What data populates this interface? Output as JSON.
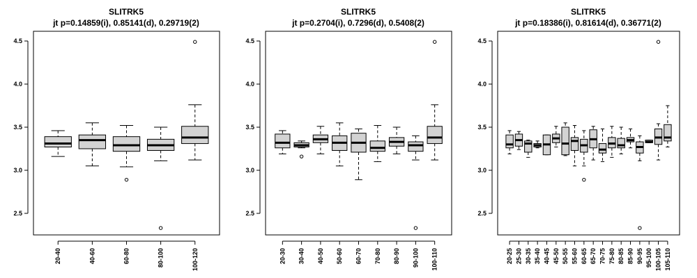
{
  "chart_data": [
    {
      "type": "boxplot",
      "title": "SLITRK5",
      "subtitle": "jt p=0.14859(i), 0.85141(d), 0.29719(2)",
      "xlabel": "",
      "ylabel": "",
      "ylim": [
        2.3,
        4.6
      ],
      "yticks": [
        "2.5",
        "3.0",
        "3.5",
        "4.0",
        "4.5"
      ],
      "categories": [
        "20-40",
        "40-60",
        "60-80",
        "80-100",
        "100-120"
      ],
      "boxes": [
        {
          "low": 3.16,
          "q1": 3.27,
          "median": 3.31,
          "q3": 3.39,
          "high": 3.46,
          "outliers": []
        },
        {
          "low": 3.05,
          "q1": 3.25,
          "median": 3.35,
          "q3": 3.41,
          "high": 3.55,
          "outliers": []
        },
        {
          "low": 3.04,
          "q1": 3.22,
          "median": 3.29,
          "q3": 3.39,
          "high": 3.52,
          "outliers": [
            2.89
          ]
        },
        {
          "low": 3.11,
          "q1": 3.23,
          "median": 3.29,
          "q3": 3.36,
          "high": 3.5,
          "outliers": [
            2.33
          ]
        },
        {
          "low": 3.12,
          "q1": 3.31,
          "median": 3.38,
          "q3": 3.51,
          "high": 3.76,
          "outliers": [
            4.49
          ]
        }
      ]
    },
    {
      "type": "boxplot",
      "title": "SLITRK5",
      "subtitle": "jt p=0.2704(i), 0.7296(d), 0.5408(2)",
      "xlabel": "",
      "ylabel": "",
      "ylim": [
        2.3,
        4.6
      ],
      "yticks": [
        "2.5",
        "3.0",
        "3.5",
        "4.0",
        "4.5"
      ],
      "categories": [
        "20-30",
        "30-40",
        "40-50",
        "50-60",
        "60-70",
        "70-80",
        "80-90",
        "90-100",
        "100-110"
      ],
      "boxes": [
        {
          "low": 3.19,
          "q1": 3.26,
          "median": 3.32,
          "q3": 3.42,
          "high": 3.46,
          "outliers": []
        },
        {
          "low": 3.26,
          "q1": 3.27,
          "median": 3.29,
          "q3": 3.32,
          "high": 3.34,
          "outliers": [
            3.16
          ]
        },
        {
          "low": 3.19,
          "q1": 3.32,
          "median": 3.36,
          "q3": 3.41,
          "high": 3.51,
          "outliers": []
        },
        {
          "low": 3.05,
          "q1": 3.23,
          "median": 3.32,
          "q3": 3.4,
          "high": 3.55,
          "outliers": []
        },
        {
          "low": 2.89,
          "q1": 3.21,
          "median": 3.32,
          "q3": 3.43,
          "high": 3.48,
          "outliers": []
        },
        {
          "low": 3.1,
          "q1": 3.22,
          "median": 3.26,
          "q3": 3.34,
          "high": 3.52,
          "outliers": []
        },
        {
          "low": 3.19,
          "q1": 3.28,
          "median": 3.33,
          "q3": 3.38,
          "high": 3.5,
          "outliers": []
        },
        {
          "low": 3.12,
          "q1": 3.22,
          "median": 3.29,
          "q3": 3.33,
          "high": 3.4,
          "outliers": [
            2.33
          ]
        },
        {
          "low": 3.12,
          "q1": 3.31,
          "median": 3.38,
          "q3": 3.51,
          "high": 3.76,
          "outliers": [
            4.49
          ]
        }
      ]
    },
    {
      "type": "boxplot",
      "title": "SLITRK5",
      "subtitle": "jt p=0.18386(i), 0.81614(d), 0.36771(2)",
      "xlabel": "",
      "ylabel": "",
      "ylim": [
        2.3,
        4.6
      ],
      "yticks": [
        "2.5",
        "3.0",
        "3.5",
        "4.0",
        "4.5"
      ],
      "categories": [
        "20-25",
        "25-30",
        "30-35",
        "35-40",
        "40-45",
        "45-50",
        "50-55",
        "55-60",
        "60-65",
        "65-70",
        "70-75",
        "75-80",
        "80-85",
        "85-90",
        "90-95",
        "95-100",
        "100-105",
        "105-110"
      ],
      "boxes": [
        {
          "low": 3.19,
          "q1": 3.26,
          "median": 3.3,
          "q3": 3.41,
          "high": 3.46,
          "outliers": []
        },
        {
          "low": 3.24,
          "q1": 3.28,
          "median": 3.35,
          "q3": 3.42,
          "high": 3.45,
          "outliers": []
        },
        {
          "low": 3.15,
          "q1": 3.21,
          "median": 3.31,
          "q3": 3.34,
          "high": 3.35,
          "outliers": []
        },
        {
          "low": 3.26,
          "q1": 3.27,
          "median": 3.29,
          "q3": 3.31,
          "high": 3.34,
          "outliers": []
        },
        {
          "low": 3.18,
          "q1": 3.18,
          "median": 3.3,
          "q3": 3.41,
          "high": 3.41,
          "outliers": []
        },
        {
          "low": 3.27,
          "q1": 3.32,
          "median": 3.37,
          "q3": 3.42,
          "high": 3.51,
          "outliers": []
        },
        {
          "low": 3.17,
          "q1": 3.18,
          "median": 3.31,
          "q3": 3.5,
          "high": 3.55,
          "outliers": []
        },
        {
          "low": 3.05,
          "q1": 3.23,
          "median": 3.34,
          "q3": 3.38,
          "high": 3.52,
          "outliers": []
        },
        {
          "low": 3.05,
          "q1": 3.21,
          "median": 3.29,
          "q3": 3.36,
          "high": 3.46,
          "outliers": [
            2.89
          ]
        },
        {
          "low": 3.12,
          "q1": 3.26,
          "median": 3.36,
          "q3": 3.47,
          "high": 3.51,
          "outliers": []
        },
        {
          "low": 3.1,
          "q1": 3.2,
          "median": 3.24,
          "q3": 3.31,
          "high": 3.48,
          "outliers": []
        },
        {
          "low": 3.15,
          "q1": 3.26,
          "median": 3.31,
          "q3": 3.38,
          "high": 3.51,
          "outliers": []
        },
        {
          "low": 3.19,
          "q1": 3.26,
          "median": 3.29,
          "q3": 3.37,
          "high": 3.5,
          "outliers": []
        },
        {
          "low": 3.26,
          "q1": 3.33,
          "median": 3.35,
          "q3": 3.38,
          "high": 3.48,
          "outliers": []
        },
        {
          "low": 3.11,
          "q1": 3.2,
          "median": 3.27,
          "q3": 3.33,
          "high": 3.4,
          "outliers": [
            2.33
          ]
        },
        {
          "low": 3.32,
          "q1": 3.32,
          "median": 3.33,
          "q3": 3.35,
          "high": 3.35,
          "outliers": []
        },
        {
          "low": 3.12,
          "q1": 3.3,
          "median": 3.38,
          "q3": 3.48,
          "high": 3.54,
          "outliers": [
            4.49
          ]
        },
        {
          "low": 3.27,
          "q1": 3.34,
          "median": 3.38,
          "q3": 3.53,
          "high": 3.75,
          "outliers": []
        }
      ]
    }
  ],
  "colors": {
    "box_fill": "#d3d3d3",
    "stroke": "#000000",
    "background": "#ffffff"
  }
}
